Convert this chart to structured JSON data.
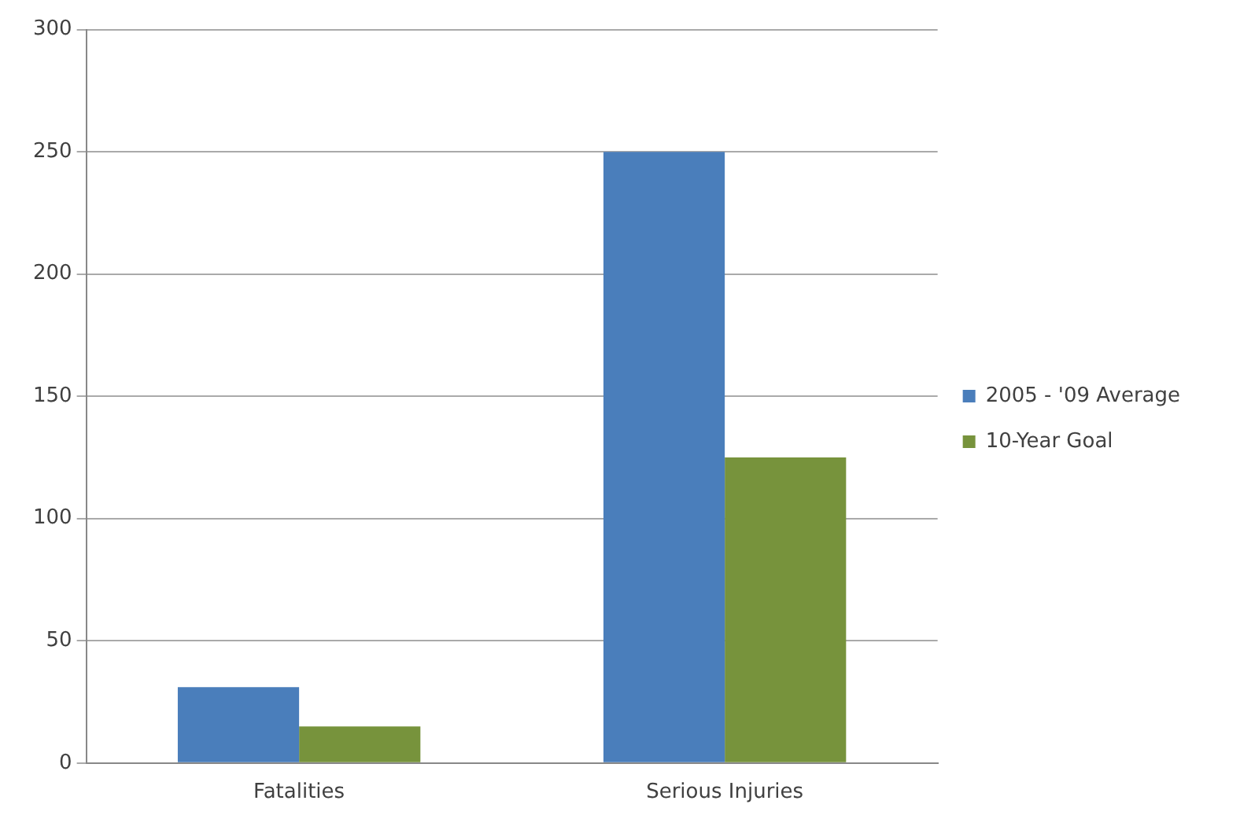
{
  "chart_data": {
    "type": "bar",
    "categories": [
      "Fatalities",
      "Serious Injuries"
    ],
    "series": [
      {
        "name": "2005 - '09 Average",
        "color": "#4a7ebb",
        "values": [
          31,
          250
        ]
      },
      {
        "name": "10-Year Goal",
        "color": "#77933c",
        "values": [
          15,
          125
        ]
      }
    ],
    "ylim": [
      0,
      300
    ],
    "yticks": [
      0,
      50,
      100,
      150,
      200,
      250,
      300
    ],
    "grid": "y",
    "legend": "right"
  }
}
